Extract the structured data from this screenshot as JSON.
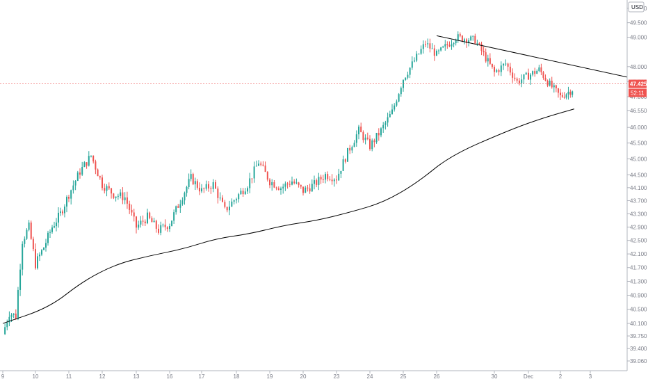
{
  "price_scale": {
    "currency_label": "USD",
    "ticks": [
      "50.000",
      "49.500",
      "49.000",
      "48.000",
      "47.500",
      "47.000",
      "46.550",
      "46.000",
      "45.500",
      "45.000",
      "44.500",
      "44.100",
      "43.700",
      "43.300",
      "42.900",
      "42.500",
      "42.100",
      "41.700",
      "41.300",
      "40.900",
      "40.500",
      "40.100",
      "39.750",
      "39.400",
      "39.060"
    ],
    "last_price_label": "47.425",
    "countdown_label": "52:11",
    "last_price_color": "#ef5350"
  },
  "time_scale": {
    "ticks": [
      "9",
      "10",
      "11",
      "12",
      "13",
      "16",
      "17",
      "18",
      "19",
      "20",
      "23",
      "24",
      "25",
      "26",
      "30",
      "Dec",
      "2",
      "3"
    ]
  },
  "colors": {
    "up": "#26a69a",
    "down": "#ef5350",
    "line": "#000000",
    "grid": "#ffffff"
  },
  "chart_data": {
    "type": "candlestick",
    "y_scale": "log",
    "ylim": [
      39.06,
      50.0
    ],
    "x_categories": [
      "9",
      "10",
      "11",
      "12",
      "13",
      "16",
      "17",
      "18",
      "19",
      "20",
      "23",
      "24",
      "25",
      "26",
      "30",
      "Dec",
      "2",
      "3"
    ],
    "last_price": 47.425,
    "close_path": [
      [
        "9",
        39.8
      ],
      [
        "9",
        40.4
      ],
      [
        "9",
        40.3
      ],
      [
        "9",
        42.5
      ],
      [
        "9",
        42.9
      ],
      [
        "10",
        41.8
      ],
      [
        "10",
        42.3
      ],
      [
        "10",
        42.9
      ],
      [
        "10",
        43.3
      ],
      [
        "11",
        43.9
      ],
      [
        "11",
        44.6
      ],
      [
        "11",
        45.1
      ],
      [
        "12",
        44.2
      ],
      [
        "12",
        43.9
      ],
      [
        "12",
        43.8
      ],
      [
        "13",
        42.9
      ],
      [
        "13",
        43.2
      ],
      [
        "13",
        42.8
      ],
      [
        "16",
        43.0
      ],
      [
        "16",
        43.7
      ],
      [
        "16",
        44.4
      ],
      [
        "17",
        44.0
      ],
      [
        "17",
        44.2
      ],
      [
        "17",
        43.4
      ],
      [
        "18",
        43.8
      ],
      [
        "18",
        44.2
      ],
      [
        "18",
        44.9
      ],
      [
        "19",
        44.3
      ],
      [
        "19",
        44.1
      ],
      [
        "19",
        44.3
      ],
      [
        "20",
        44.0
      ],
      [
        "20",
        44.2
      ],
      [
        "20",
        44.5
      ],
      [
        "23",
        44.4
      ],
      [
        "23",
        45.2
      ],
      [
        "23",
        45.9
      ],
      [
        "24",
        45.4
      ],
      [
        "24",
        45.9
      ],
      [
        "24",
        46.5
      ],
      [
        "25",
        47.6
      ],
      [
        "25",
        48.2
      ],
      [
        "25",
        48.8
      ],
      [
        "26",
        48.4
      ],
      [
        "26",
        49.0
      ],
      [
        "26",
        48.9
      ],
      [
        "30",
        47.8
      ],
      [
        "30",
        48.1
      ],
      [
        "30",
        47.5
      ],
      [
        "Dec",
        47.7
      ],
      [
        "Dec",
        47.9
      ],
      [
        "Dec",
        47.4
      ],
      [
        "2",
        47.0
      ],
      [
        "2",
        47.2
      ],
      [
        "2",
        47.425
      ]
    ],
    "moving_average": [
      [
        "9",
        40.1
      ],
      [
        "10",
        40.55
      ],
      [
        "11",
        41.3
      ],
      [
        "12",
        41.8
      ],
      [
        "13",
        42.05
      ],
      [
        "16",
        42.25
      ],
      [
        "17",
        42.55
      ],
      [
        "18",
        42.7
      ],
      [
        "19",
        42.95
      ],
      [
        "20",
        43.1
      ],
      [
        "23",
        43.35
      ],
      [
        "24",
        43.65
      ],
      [
        "25",
        44.25
      ],
      [
        "26",
        45.1
      ],
      [
        "30",
        45.9
      ],
      [
        "Dec",
        46.3
      ],
      [
        "2",
        46.6
      ]
    ],
    "trendline": [
      [
        "26",
        49.05
      ],
      [
        "3",
        47.65
      ]
    ]
  }
}
